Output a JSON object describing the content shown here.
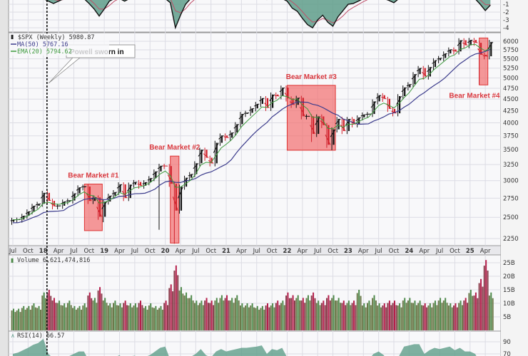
{
  "chart_data": {
    "type": "line",
    "title": "$SPX (Weekly)",
    "scale": "log",
    "start_month": "2017-07",
    "x_tick_labels": [
      "Jul",
      "Oct",
      "18",
      "Apr",
      "Jul",
      "Oct",
      "19",
      "Apr",
      "Jul",
      "Oct",
      "20",
      "Apr",
      "Jul",
      "Oct",
      "21",
      "Apr",
      "Jul",
      "Oct",
      "22",
      "Apr",
      "Jul",
      "Oct",
      "23",
      "Apr",
      "Jul",
      "Oct",
      "24",
      "Apr",
      "Jul",
      "Oct",
      "25",
      "Apr"
    ],
    "price_ticks": [
      "2250",
      "2500",
      "2750",
      "3000",
      "3250",
      "3500",
      "3750",
      "4000",
      "4250",
      "4500",
      "4750",
      "5000",
      "5250",
      "5500",
      "5750",
      "6000"
    ],
    "ylim": [
      2150,
      6200
    ],
    "legend": {
      "price": "$SPX (Weekly) 5980.87",
      "ma": "MA(50) 5767.16",
      "ema": "EMA(20) 5794.62",
      "volume": "Volume 6,621,474,816",
      "rsi": "RSI(14) 56.57"
    },
    "colors": {
      "up": "#111111",
      "down": "#d0202a",
      "ma": "#3c3c8c",
      "ema": "#3e9a3e",
      "vol_up": "#4f8a4b",
      "vol_down": "#b51f4b",
      "box": "#f26d6d",
      "ind": "#5f9d89"
    },
    "close": [
      2470,
      2472,
      2519,
      2575,
      2648,
      2674,
      2824,
      2714,
      2641,
      2648,
      2705,
      2718,
      2816,
      2902,
      2914,
      2712,
      2760,
      2507,
      2704,
      2784,
      2834,
      2946,
      2752,
      2942,
      2980,
      2926,
      2977,
      3038,
      3141,
      3231,
      3226,
      2954,
      2585,
      2912,
      3044,
      3100,
      3271,
      3500,
      3363,
      3270,
      3622,
      3756,
      3714,
      3811,
      3973,
      4181,
      4204,
      4298,
      4395,
      4523,
      4308,
      4605,
      4567,
      4766,
      4516,
      4374,
      4530,
      4132,
      4132,
      3785,
      4130,
      3955,
      3586,
      3872,
      4080,
      3840,
      4077,
      3970,
      4109,
      4169,
      4180,
      4450,
      4589,
      4508,
      4288,
      4194,
      4568,
      4770,
      4846,
      5096,
      5254,
      5036,
      5278,
      5460,
      5522,
      5648,
      5762,
      5705,
      6032,
      5882,
      6041,
      5955,
      5612,
      5569,
      5981
    ],
    "lows": {
      "18": 2440,
      "29": 2350,
      "32": 2192,
      "59": 3637,
      "63": 3492,
      "92": 4835
    },
    "volume_billions": [
      8,
      8,
      9,
      9,
      10,
      9,
      14,
      15,
      12,
      11,
      10,
      11,
      9,
      9,
      10,
      14,
      12,
      16,
      12,
      10,
      11,
      10,
      11,
      10,
      10,
      11,
      9,
      10,
      9,
      9,
      11,
      17,
      24,
      16,
      14,
      13,
      11,
      11,
      12,
      11,
      12,
      13,
      13,
      12,
      13,
      10,
      10,
      10,
      9,
      9,
      10,
      10,
      11,
      11,
      14,
      13,
      13,
      12,
      13,
      14,
      11,
      11,
      13,
      13,
      12,
      11,
      11,
      11,
      15,
      10,
      11,
      13,
      10,
      10,
      11,
      11,
      10,
      12,
      12,
      11,
      11,
      10,
      10,
      11,
      12,
      12,
      10,
      10,
      11,
      12,
      15,
      14,
      19,
      26,
      14
    ],
    "volume_ticks": [
      "25B",
      "20B",
      "15B",
      "10B",
      "5B"
    ],
    "rsi": [
      70,
      72,
      76,
      80,
      85,
      88,
      95,
      70,
      62,
      63,
      66,
      66,
      70,
      74,
      74,
      58,
      60,
      48,
      58,
      62,
      64,
      68,
      58,
      66,
      67,
      63,
      65,
      68,
      74,
      80,
      82,
      60,
      45,
      58,
      63,
      65,
      70,
      78,
      68,
      64,
      74,
      78,
      74,
      76,
      78,
      80,
      80,
      81,
      82,
      84,
      70,
      78,
      76,
      80,
      64,
      58,
      62,
      52,
      52,
      42,
      55,
      50,
      40,
      50,
      56,
      50,
      56,
      54,
      58,
      60,
      60,
      70,
      74,
      68,
      56,
      52,
      66,
      82,
      84,
      86,
      86,
      70,
      76,
      80,
      78,
      80,
      82,
      76,
      80,
      74,
      74,
      70,
      55,
      52,
      56.57
    ],
    "rsi_ticks": [
      "90",
      "70"
    ],
    "indicator": [
      0.5,
      0.5,
      0.4,
      0.4,
      0.5,
      0.6,
      0.4,
      -0.6,
      -0.9,
      -0.6,
      -0.3,
      0.1,
      0.2,
      0.3,
      0.2,
      -0.9,
      -1.6,
      -2.5,
      -1.6,
      -0.6,
      0.1,
      0.3,
      -0.6,
      -0.2,
      0.3,
      -0.3,
      0.0,
      0.3,
      0.6,
      0.8,
      0.6,
      -0.8,
      -4.0,
      -2.4,
      -1.0,
      0.1,
      0.5,
      0.8,
      0.3,
      0.0,
      0.5,
      0.8,
      0.5,
      0.4,
      0.5,
      0.7,
      0.6,
      0.5,
      0.6,
      0.7,
      -0.4,
      0.4,
      0.2,
      0.5,
      -0.6,
      -1.5,
      -1.9,
      -2.8,
      -3.6,
      -4.0,
      -3.0,
      -2.4,
      -3.3,
      -3.8,
      -2.6,
      -1.8,
      -1.0,
      -0.9,
      -0.6,
      -0.2,
      0.0,
      0.5,
      0.8,
      0.3,
      -0.5,
      -0.8,
      0.2,
      0.7,
      0.8,
      0.9,
      0.9,
      -0.3,
      0.2,
      0.5,
      0.4,
      -0.2,
      0.3,
      0.3,
      0.6,
      0.4,
      0.2,
      -0.3,
      -1.0,
      -1.8,
      -1.1
    ],
    "indicator_ticks": [
      "-1",
      "-2",
      "-3",
      "-4"
    ],
    "bear_markets": [
      {
        "label": "Bear Market #1",
        "from_month": 14.1,
        "to_month": 17.6,
        "low": 2340,
        "high": 2950,
        "label_pos": "above"
      },
      {
        "label": "Bear Market #2",
        "from_month": 31.0,
        "to_month": 32.7,
        "low": 2200,
        "high": 3390,
        "label_pos": "above"
      },
      {
        "label": "Bear Market #3",
        "from_month": 54.0,
        "to_month": 63.5,
        "low": 3490,
        "high": 4820,
        "label_pos": "above"
      },
      {
        "label": "Bear Market #4",
        "from_month": 91.8,
        "to_month": 93.5,
        "low": 4830,
        "high": 6100,
        "label_pos": "below"
      }
    ],
    "annotation": {
      "label": "Powell sworn in",
      "month": 7
    }
  }
}
